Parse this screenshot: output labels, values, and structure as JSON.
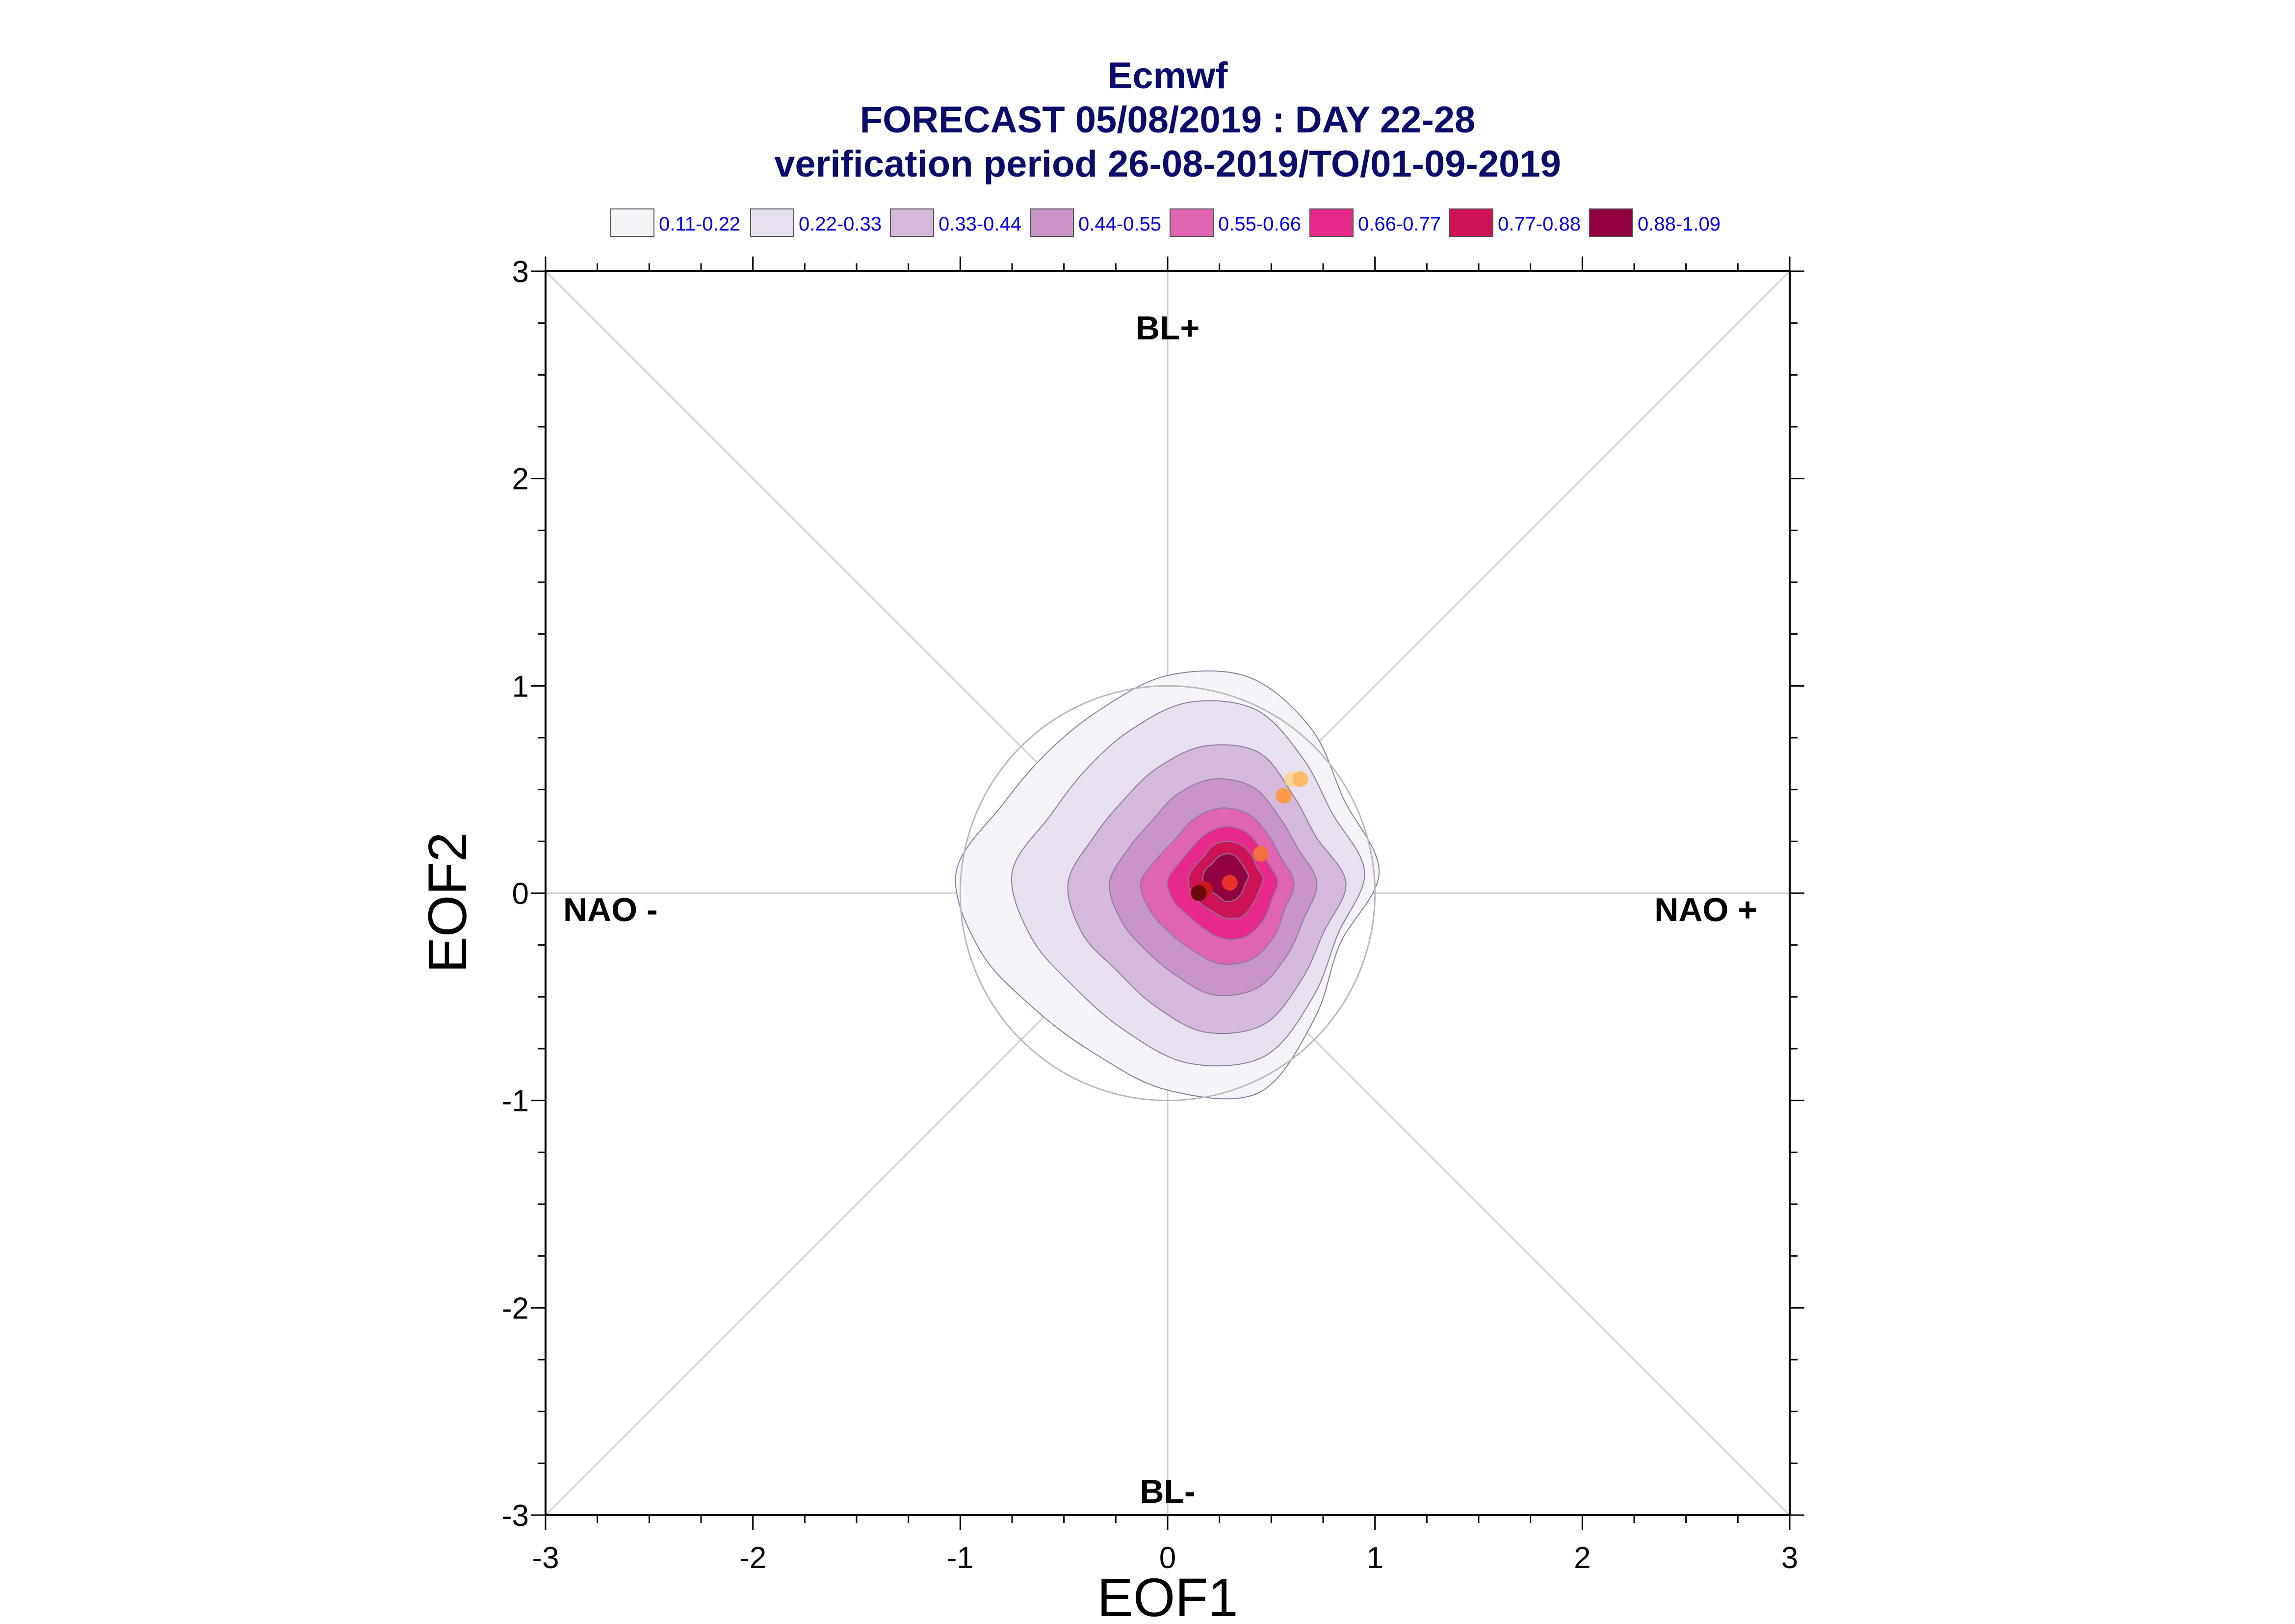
{
  "title": {
    "line1": "Ecmwf",
    "line2": "FORECAST 05/08/2019 : DAY 22-28",
    "line3": "verification period 26-08-2019/TO/01-09-2019"
  },
  "legend": [
    {
      "label": "0.11-0.22",
      "color": "#f7f4f9"
    },
    {
      "label": "0.22-0.33",
      "color": "#e7e1ef"
    },
    {
      "label": "0.33-0.44",
      "color": "#d4b9da"
    },
    {
      "label": "0.44-0.55",
      "color": "#c994c7"
    },
    {
      "label": "0.55-0.66",
      "color": "#df65b0"
    },
    {
      "label": "0.66-0.77",
      "color": "#e7298a"
    },
    {
      "label": "0.77-0.88",
      "color": "#ce1256"
    },
    {
      "label": "0.88-1.09",
      "color": "#91003f"
    }
  ],
  "regimes": {
    "top": "BL+",
    "bottom": "BL-",
    "left": "NAO -",
    "right": "NAO +"
  },
  "chart_data": {
    "type": "scatter",
    "xlabel": "EOF1",
    "ylabel": "EOF2",
    "xlim": [
      -3,
      3
    ],
    "ylim": [
      -3,
      3
    ],
    "xticks": [
      "-3",
      "-2",
      "-1",
      "0",
      "1",
      "2",
      "3"
    ],
    "yticks": [
      "-3",
      "-2",
      "-1",
      "0",
      "1",
      "2",
      "3"
    ],
    "reference_circle_radius": 1,
    "density_levels": [
      0.11,
      0.22,
      0.33,
      0.44,
      0.55,
      0.66,
      0.77,
      0.88,
      1.09
    ],
    "density_contours": [
      {
        "level": "0.11-0.22",
        "center": [
          0.0,
          0.1
        ],
        "radii": [
          1.02,
          0.92,
          0.98,
          1.02,
          0.95,
          0.85,
          0.82,
          0.86,
          1.02,
          0.98,
          0.92,
          0.94,
          1.05,
          1.15,
          1.0,
          0.9
        ]
      },
      {
        "level": "0.22-0.33",
        "center": [
          0.1,
          0.1
        ],
        "radii": [
          0.85,
          0.75,
          0.78,
          0.85,
          0.82,
          0.74,
          0.7,
          0.72,
          0.85,
          0.82,
          0.78,
          0.82,
          0.92,
          0.96,
          0.85,
          0.78
        ]
      },
      {
        "level": "0.33-0.44",
        "center": [
          0.18,
          0.05
        ],
        "radii": [
          0.68,
          0.58,
          0.6,
          0.68,
          0.66,
          0.6,
          0.56,
          0.58,
          0.66,
          0.64,
          0.6,
          0.64,
          0.72,
          0.74,
          0.66,
          0.62
        ]
      },
      {
        "level": "0.44-0.55",
        "center": [
          0.22,
          0.05
        ],
        "radii": [
          0.5,
          0.44,
          0.45,
          0.5,
          0.5,
          0.46,
          0.42,
          0.44,
          0.5,
          0.48,
          0.46,
          0.48,
          0.54,
          0.55,
          0.5,
          0.47
        ]
      },
      {
        "level": "0.55-0.66",
        "center": [
          0.25,
          0.05
        ],
        "radii": [
          0.36,
          0.32,
          0.33,
          0.36,
          0.36,
          0.33,
          0.3,
          0.32,
          0.38,
          0.36,
          0.34,
          0.35,
          0.39,
          0.4,
          0.37,
          0.34
        ]
      },
      {
        "level": "0.66-0.77",
        "center": [
          0.27,
          0.06
        ],
        "radii": [
          0.26,
          0.23,
          0.24,
          0.26,
          0.26,
          0.24,
          0.22,
          0.23,
          0.27,
          0.26,
          0.24,
          0.25,
          0.28,
          0.29,
          0.27,
          0.25
        ]
      },
      {
        "level": "0.77-0.88",
        "center": [
          0.28,
          0.07
        ],
        "radii": [
          0.18,
          0.16,
          0.17,
          0.18,
          0.18,
          0.17,
          0.15,
          0.16,
          0.18,
          0.18,
          0.17,
          0.17,
          0.19,
          0.2,
          0.18,
          0.17
        ]
      },
      {
        "level": "0.88-1.09",
        "center": [
          0.28,
          0.08
        ],
        "radii": [
          0.11,
          0.1,
          0.1,
          0.11,
          0.11,
          0.1,
          0.09,
          0.1,
          0.11,
          0.11,
          0.1,
          0.1,
          0.12,
          0.12,
          0.11,
          0.1
        ]
      }
    ],
    "points": [
      {
        "x": 0.6,
        "y": 0.55,
        "color": "#fdd49e"
      },
      {
        "x": 0.64,
        "y": 0.55,
        "color": "#fdbb6a"
      },
      {
        "x": 0.56,
        "y": 0.47,
        "color": "#fc9a4a"
      },
      {
        "x": 0.45,
        "y": 0.19,
        "color": "#f46d43"
      },
      {
        "x": 0.3,
        "y": 0.05,
        "color": "#e8302d"
      },
      {
        "x": 0.18,
        "y": 0.02,
        "color": "#c9151e"
      },
      {
        "x": 0.15,
        "y": 0.0,
        "color": "#6b0a0a"
      }
    ]
  }
}
